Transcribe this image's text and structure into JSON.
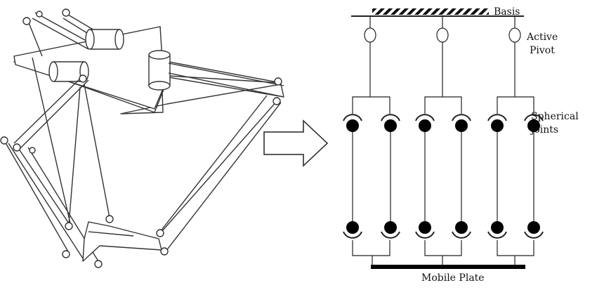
{
  "labels": {
    "basis": "Basis",
    "active_line1": "Active",
    "active_line2": "Pivot",
    "spherical_line1": "Spherical",
    "spherical_line2": "joints",
    "mobile_plate": "Mobile Plate"
  }
}
